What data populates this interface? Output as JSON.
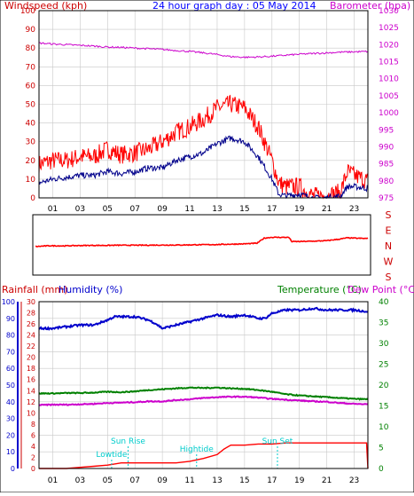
{
  "colors": {
    "wind": "#ff0000",
    "wind_avg": "#00008b",
    "barometer": "#cc00cc",
    "direction": "#ff0000",
    "rainfall": "#ff0000",
    "humidity": "#0000cc",
    "temperature": "#008000",
    "dewpoint": "#cc00cc",
    "header": "#0000ff",
    "rain_axis": "#0000cc",
    "dewpoint_axis": "#cc00cc",
    "tide_marker": "#00cccc",
    "grid": "#c8c8c8",
    "frame": "#000000"
  },
  "chart_data": [
    {
      "id": "wind_pressure",
      "type": "line",
      "title": "24 hour graph day : 05 May 2014",
      "ylabel_left": "Windspeed (kph)",
      "ylabel_right": "Barometer (hpa)",
      "x_ticks": [
        "01",
        "03",
        "05",
        "07",
        "09",
        "11",
        "13",
        "15",
        "17",
        "19",
        "21",
        "23"
      ],
      "xlim": [
        0,
        24
      ],
      "ylim_left": [
        0,
        100
      ],
      "yticks_left": [
        0,
        10,
        20,
        30,
        40,
        50,
        60,
        70,
        80,
        90,
        100
      ],
      "ylim_right": [
        975,
        1030
      ],
      "yticks_right": [
        975,
        980,
        985,
        990,
        995,
        1000,
        1005,
        1010,
        1015,
        1020,
        1025,
        1030
      ],
      "grid": true,
      "series": [
        {
          "key": "wind_gust",
          "axis": "left",
          "x": [
            0,
            1,
            2,
            3,
            4,
            5,
            6,
            7,
            8,
            9,
            10,
            11,
            12,
            13,
            14,
            15,
            16,
            17,
            17.5,
            18,
            19,
            20,
            21,
            22,
            22.5,
            23,
            24
          ],
          "y": [
            18,
            20,
            20,
            22,
            22,
            26,
            23,
            24,
            26,
            30,
            35,
            38,
            42,
            48,
            50,
            48,
            38,
            20,
            8,
            6,
            6,
            1,
            1,
            3,
            14,
            12,
            9
          ]
        },
        {
          "key": "wind_average",
          "axis": "left",
          "x": [
            0,
            1,
            2,
            3,
            4,
            5,
            6,
            7,
            8,
            9,
            10,
            11,
            12,
            13,
            14,
            15,
            16,
            17,
            17.5,
            18,
            19,
            20,
            21,
            22,
            22.5,
            23,
            24
          ],
          "y": [
            8,
            10,
            11,
            12,
            12,
            14,
            13,
            14,
            16,
            16,
            20,
            22,
            24,
            29,
            32,
            30,
            22,
            10,
            2,
            1,
            2,
            0,
            0,
            1,
            6,
            6,
            5
          ]
        },
        {
          "key": "barometer",
          "axis": "right",
          "x": [
            0,
            1,
            2,
            3,
            4,
            5,
            6,
            7,
            8,
            9,
            10,
            11,
            12,
            13,
            14,
            15,
            16,
            17,
            18,
            19,
            20,
            21,
            22,
            23,
            24
          ],
          "y": [
            1020.5,
            1020.2,
            1020,
            1019.8,
            1019.6,
            1019.3,
            1019.2,
            1019,
            1018.8,
            1018.6,
            1018.3,
            1018,
            1017.6,
            1017.1,
            1016.5,
            1016.3,
            1016.4,
            1016.6,
            1016.9,
            1017.2,
            1017.4,
            1017.6,
            1017.8,
            1017.9,
            1018
          ]
        }
      ]
    },
    {
      "id": "wind_direction",
      "type": "scatter",
      "ylabels": [
        "S",
        "E",
        "N",
        "W",
        "S"
      ],
      "xlim": [
        0,
        24
      ],
      "ylim": [
        0,
        360
      ],
      "series": [
        {
          "key": "direction",
          "x": [
            0,
            1,
            2,
            3,
            4,
            5,
            6,
            7,
            8,
            9,
            10,
            11,
            12,
            13,
            14,
            15,
            16,
            16.5,
            17,
            18,
            18.3,
            18.5,
            19,
            20,
            21,
            22,
            22.5,
            23,
            24
          ],
          "y": [
            170,
            175,
            174,
            176,
            177,
            177,
            178,
            178,
            178,
            179,
            179,
            180,
            181,
            182,
            184,
            186,
            190,
            220,
            225,
            225,
            225,
            200,
            200,
            202,
            205,
            215,
            222,
            220,
            218
          ]
        }
      ]
    },
    {
      "id": "rain_humidity_temperature",
      "type": "line",
      "ylabel_left_1": "Rainfall (mm)",
      "ylabel_left_2": "Humidity (%)",
      "ylabel_right_1": "Temperature (°C)",
      "ylabel_right_2": "Dew Point (°C)",
      "x_ticks": [
        "01",
        "03",
        "05",
        "07",
        "09",
        "11",
        "13",
        "15",
        "17",
        "19",
        "21",
        "23"
      ],
      "xlim": [
        0,
        24
      ],
      "ylim_humidity": [
        0,
        100
      ],
      "yticks_humidity": [
        0,
        10,
        20,
        30,
        40,
        50,
        60,
        70,
        80,
        90,
        100
      ],
      "ylim_rain": [
        0,
        30
      ],
      "yticks_rain": [
        0,
        2,
        4,
        6,
        8,
        10,
        12,
        14,
        16,
        18,
        20,
        22,
        24,
        26,
        28,
        30
      ],
      "ylim_temp": [
        0,
        40
      ],
      "yticks_temp": [
        0,
        5,
        10,
        15,
        20,
        25,
        30,
        35,
        40
      ],
      "grid": true,
      "annotations": [
        {
          "label": "Lowtide",
          "x": 5.3
        },
        {
          "label": "Sun Rise",
          "x": 6.5
        },
        {
          "label": "Hightide",
          "x": 11.5
        },
        {
          "label": "Sun Set",
          "x": 17.4
        }
      ],
      "series": [
        {
          "key": "humidity",
          "axis": "humidity",
          "x": [
            0,
            1,
            2,
            3,
            4,
            5,
            5.5,
            6,
            7,
            8,
            8.5,
            9,
            10,
            11,
            12,
            13,
            14,
            15,
            16,
            16.5,
            17,
            18,
            19,
            20,
            21,
            22,
            23,
            24
          ],
          "y": [
            84,
            84,
            85,
            86,
            86,
            89,
            91,
            91,
            91,
            89,
            87,
            84,
            86,
            88,
            90,
            92,
            91,
            92,
            90,
            90,
            93,
            95,
            95,
            96,
            95,
            95,
            95,
            94
          ]
        },
        {
          "key": "rainfall",
          "axis": "rain",
          "x": [
            0,
            1,
            2,
            3,
            4,
            5,
            6,
            7,
            8,
            9,
            10,
            11,
            12,
            13,
            13.5,
            14,
            15,
            16,
            17,
            18,
            19,
            20,
            21,
            22,
            23,
            23.9,
            24
          ],
          "y": [
            0,
            0,
            0,
            0.2,
            0.4,
            0.6,
            1,
            1,
            1,
            1,
            1,
            1.3,
            1.8,
            2.5,
            3.5,
            4.2,
            4.2,
            4.4,
            4.4,
            4.6,
            4.6,
            4.6,
            4.6,
            4.6,
            4.6,
            4.6,
            0
          ]
        },
        {
          "key": "temperature",
          "axis": "temp",
          "x": [
            0,
            1,
            2,
            3,
            4,
            5,
            6,
            7,
            8,
            9,
            10,
            11,
            12,
            13,
            14,
            15,
            16,
            17,
            18,
            19,
            20,
            21,
            22,
            23,
            24
          ],
          "y": [
            18,
            18,
            18.1,
            18.1,
            18.2,
            18.4,
            18.3,
            18.5,
            18.8,
            19,
            19.2,
            19.4,
            19.3,
            19.4,
            19.2,
            19.1,
            18.8,
            18.4,
            17.8,
            17.5,
            17.3,
            17.1,
            16.9,
            16.7,
            16.6
          ]
        },
        {
          "key": "dewpoint",
          "axis": "temp",
          "x": [
            0,
            1,
            2,
            3,
            4,
            5,
            6,
            7,
            8,
            9,
            10,
            11,
            12,
            13,
            14,
            15,
            16,
            17,
            18,
            19,
            20,
            21,
            22,
            23,
            24
          ],
          "y": [
            15.2,
            15.3,
            15.3,
            15.4,
            15.5,
            15.7,
            15.8,
            15.9,
            16.1,
            16.1,
            16.4,
            16.6,
            16.9,
            17.1,
            17.2,
            17.2,
            17,
            16.7,
            16.5,
            16.3,
            16.1,
            16,
            15.7,
            15.5,
            15.4
          ]
        }
      ]
    }
  ]
}
